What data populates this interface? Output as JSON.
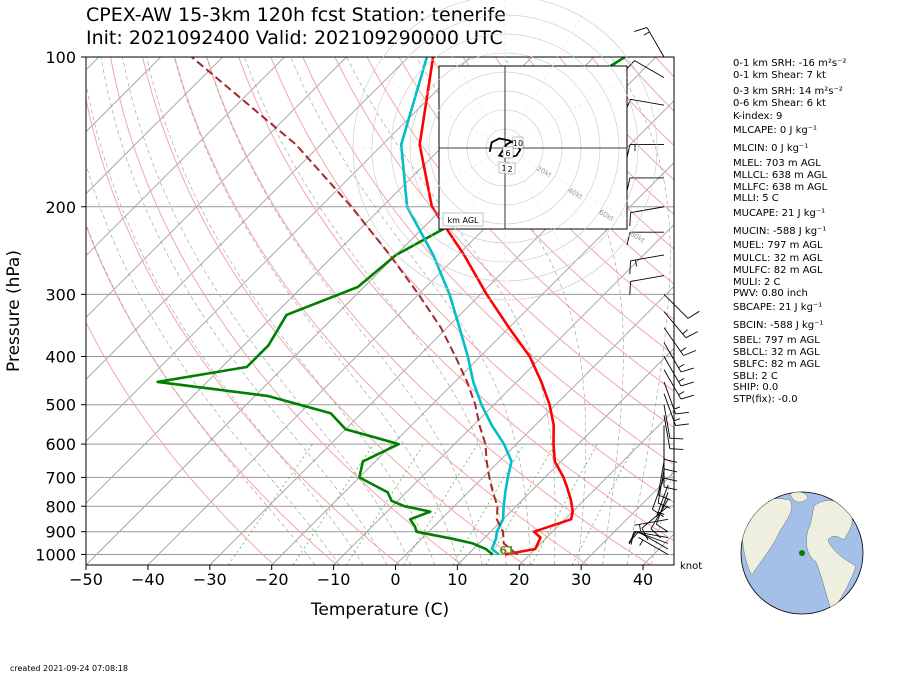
{
  "title_line1": "CPEX-AW 15-3km  120h fcst  Station: tenerife",
  "title_line2": "Init: 2021092400  Valid: 202109290000 UTC",
  "created": "created 2021-09-24 07:08:18",
  "wind_unit_label": "knot",
  "hodograph": {
    "legend_label": "km AGL",
    "ring_labels": [
      "20kt",
      "40kt",
      "60kt",
      "80kt"
    ],
    "height_labels": [
      "10",
      "6",
      "1",
      "2"
    ],
    "trace_uv_kt": [
      [
        -8,
        -2
      ],
      [
        -7,
        3
      ],
      [
        -3,
        5
      ],
      [
        2,
        4
      ],
      [
        6,
        2
      ],
      [
        8,
        -1
      ],
      [
        6,
        -4
      ],
      [
        2,
        -5
      ],
      [
        -3,
        -4
      ],
      [
        1,
        2
      ],
      [
        5,
        4
      ],
      [
        6,
        5
      ]
    ]
  },
  "indices": [
    "0-1 km SRH: -16 m²s⁻²",
    "0-1 km Shear: 7 kt",
    "0-3 km SRH: 14 m²s⁻²",
    "0-6 km Shear: 6 kt",
    "K-index: 9",
    "MLCAPE: 0 J kg⁻¹",
    "MLCIN: 0 J kg⁻¹",
    "MLEL: 703 m AGL",
    "MLLCL: 638 m AGL",
    "MLLFC: 638 m AGL",
    "MLLI: 5 C",
    "MUCAPE: 21 J kg⁻¹",
    "MUCIN: -588 J kg⁻¹",
    "MUEL: 797 m AGL",
    "MULCL: 32 m AGL",
    "MULFC: 82 m AGL",
    "MULI: 2 C",
    "PWV: 0.80 inch",
    "SBCAPE: 21 J kg⁻¹",
    "SBCIN: -588 J kg⁻¹",
    "SBEL: 797 m AGL",
    "SBLCL: 32 m AGL",
    "SBLFC: 82 m AGL",
    "SBLI: 2 C",
    "SHIP: 0.0",
    "STP(fix): -0.0"
  ],
  "chart_data": {
    "type": "line",
    "xlabel": "Temperature (C)",
    "ylabel": "Pressure (hPa)",
    "xlim": [
      -50,
      45
    ],
    "ylim": [
      1050,
      100
    ],
    "log_y": true,
    "skew": true,
    "x_ticks": [
      -50,
      -40,
      -30,
      -20,
      -10,
      0,
      10,
      20,
      30,
      40
    ],
    "x_tick_labels": [
      "−50",
      "−40",
      "−30",
      "−20",
      "−10",
      "0",
      "10",
      "20",
      "30",
      "40"
    ],
    "y_ticks": [
      100,
      200,
      300,
      400,
      500,
      600,
      700,
      800,
      900,
      1000
    ],
    "grid": true,
    "annotation": "61",
    "series": [
      {
        "role": "temperature",
        "color": "#ff0000",
        "points": [
          [
            1000,
            16
          ],
          [
            975,
            20
          ],
          [
            925,
            19
          ],
          [
            900,
            17
          ],
          [
            850,
            21
          ],
          [
            820,
            20
          ],
          [
            780,
            18
          ],
          [
            730,
            15
          ],
          [
            700,
            13
          ],
          [
            650,
            9
          ],
          [
            600,
            6
          ],
          [
            550,
            3
          ],
          [
            500,
            -1
          ],
          [
            450,
            -6
          ],
          [
            400,
            -12
          ],
          [
            350,
            -20
          ],
          [
            300,
            -29
          ],
          [
            250,
            -39
          ],
          [
            200,
            -52
          ],
          [
            150,
            -64
          ],
          [
            100,
            -76
          ]
        ]
      },
      {
        "role": "dewpoint",
        "color": "#008000",
        "points": [
          [
            1000,
            14
          ],
          [
            975,
            12
          ],
          [
            950,
            9
          ],
          [
            930,
            5
          ],
          [
            900,
            -2
          ],
          [
            880,
            -3
          ],
          [
            850,
            -5
          ],
          [
            820,
            -3
          ],
          [
            800,
            -8
          ],
          [
            780,
            -11
          ],
          [
            750,
            -13
          ],
          [
            700,
            -20
          ],
          [
            650,
            -22
          ],
          [
            600,
            -19
          ],
          [
            560,
            -30
          ],
          [
            520,
            -35
          ],
          [
            480,
            -48
          ],
          [
            450,
            -68
          ],
          [
            420,
            -56
          ],
          [
            380,
            -56
          ],
          [
            330,
            -58
          ],
          [
            290,
            -51
          ],
          [
            250,
            -50
          ],
          [
            210,
            -45
          ],
          [
            190,
            -48
          ],
          [
            160,
            -49
          ],
          [
            130,
            -50
          ],
          [
            110,
            -47
          ],
          [
            100,
            -45
          ]
        ]
      },
      {
        "role": "wetbulb",
        "color": "#00bfc8",
        "points": [
          [
            1000,
            15
          ],
          [
            975,
            13
          ],
          [
            930,
            12
          ],
          [
            900,
            11
          ],
          [
            850,
            10
          ],
          [
            800,
            8
          ],
          [
            750,
            6
          ],
          [
            700,
            4
          ],
          [
            650,
            2
          ],
          [
            600,
            -2
          ],
          [
            550,
            -7
          ],
          [
            500,
            -12
          ],
          [
            450,
            -17
          ],
          [
            400,
            -22
          ],
          [
            350,
            -28
          ],
          [
            300,
            -35
          ],
          [
            250,
            -44
          ],
          [
            200,
            -56
          ],
          [
            150,
            -67
          ],
          [
            100,
            -77
          ]
        ]
      },
      {
        "role": "parcel",
        "color": "#a52a2a",
        "style": "dashed",
        "points": [
          [
            1000,
            18
          ],
          [
            975,
            16
          ],
          [
            950,
            14
          ],
          [
            900,
            12
          ],
          [
            850,
            9
          ],
          [
            800,
            7
          ],
          [
            750,
            4
          ],
          [
            700,
            1
          ],
          [
            650,
            -2
          ],
          [
            600,
            -5
          ],
          [
            550,
            -9
          ],
          [
            500,
            -13
          ],
          [
            450,
            -18
          ],
          [
            400,
            -24
          ],
          [
            350,
            -31
          ],
          [
            300,
            -40
          ],
          [
            250,
            -51
          ],
          [
            200,
            -65
          ],
          [
            150,
            -84
          ],
          [
            100,
            -115
          ]
        ]
      }
    ],
    "wind_barbs": [
      {
        "p": 1000,
        "spd": 5,
        "dir": 300
      },
      {
        "p": 975,
        "spd": 10,
        "dir": 300
      },
      {
        "p": 950,
        "spd": 10,
        "dir": 290
      },
      {
        "p": 925,
        "spd": 10,
        "dir": 280
      },
      {
        "p": 900,
        "spd": 10,
        "dir": 270
      },
      {
        "p": 850,
        "spd": 5,
        "dir": 260
      },
      {
        "p": 800,
        "spd": 10,
        "dir": 230
      },
      {
        "p": 775,
        "spd": 10,
        "dir": 210
      },
      {
        "p": 750,
        "spd": 10,
        "dir": 200
      },
      {
        "p": 725,
        "spd": 5,
        "dir": 200
      },
      {
        "p": 700,
        "spd": 10,
        "dir": 200
      },
      {
        "p": 675,
        "spd": 10,
        "dir": 190
      },
      {
        "p": 650,
        "spd": 10,
        "dir": 190
      },
      {
        "p": 625,
        "spd": 10,
        "dir": 180
      },
      {
        "p": 600,
        "spd": 10,
        "dir": 180
      },
      {
        "p": 575,
        "spd": 10,
        "dir": 180
      },
      {
        "p": 550,
        "spd": 10,
        "dir": 180
      },
      {
        "p": 525,
        "spd": 10,
        "dir": 170
      },
      {
        "p": 500,
        "spd": 10,
        "dir": 170
      },
      {
        "p": 475,
        "spd": 15,
        "dir": 160
      },
      {
        "p": 450,
        "spd": 15,
        "dir": 160
      },
      {
        "p": 425,
        "spd": 15,
        "dir": 150
      },
      {
        "p": 400,
        "spd": 15,
        "dir": 150
      },
      {
        "p": 375,
        "spd": 15,
        "dir": 150
      },
      {
        "p": 350,
        "spd": 15,
        "dir": 145
      },
      {
        "p": 325,
        "spd": 15,
        "dir": 140
      },
      {
        "p": 300,
        "spd": 10,
        "dir": 135
      },
      {
        "p": 275,
        "spd": 10,
        "dir": 260
      },
      {
        "p": 250,
        "spd": 15,
        "dir": 260
      },
      {
        "p": 225,
        "spd": 10,
        "dir": 270
      },
      {
        "p": 200,
        "spd": 10,
        "dir": 260
      },
      {
        "p": 175,
        "spd": 10,
        "dir": 270
      },
      {
        "p": 150,
        "spd": 15,
        "dir": 270
      },
      {
        "p": 125,
        "spd": 10,
        "dir": 280
      },
      {
        "p": 110,
        "spd": 10,
        "dir": 300
      },
      {
        "p": 100,
        "spd": 15,
        "dir": 330
      }
    ]
  }
}
